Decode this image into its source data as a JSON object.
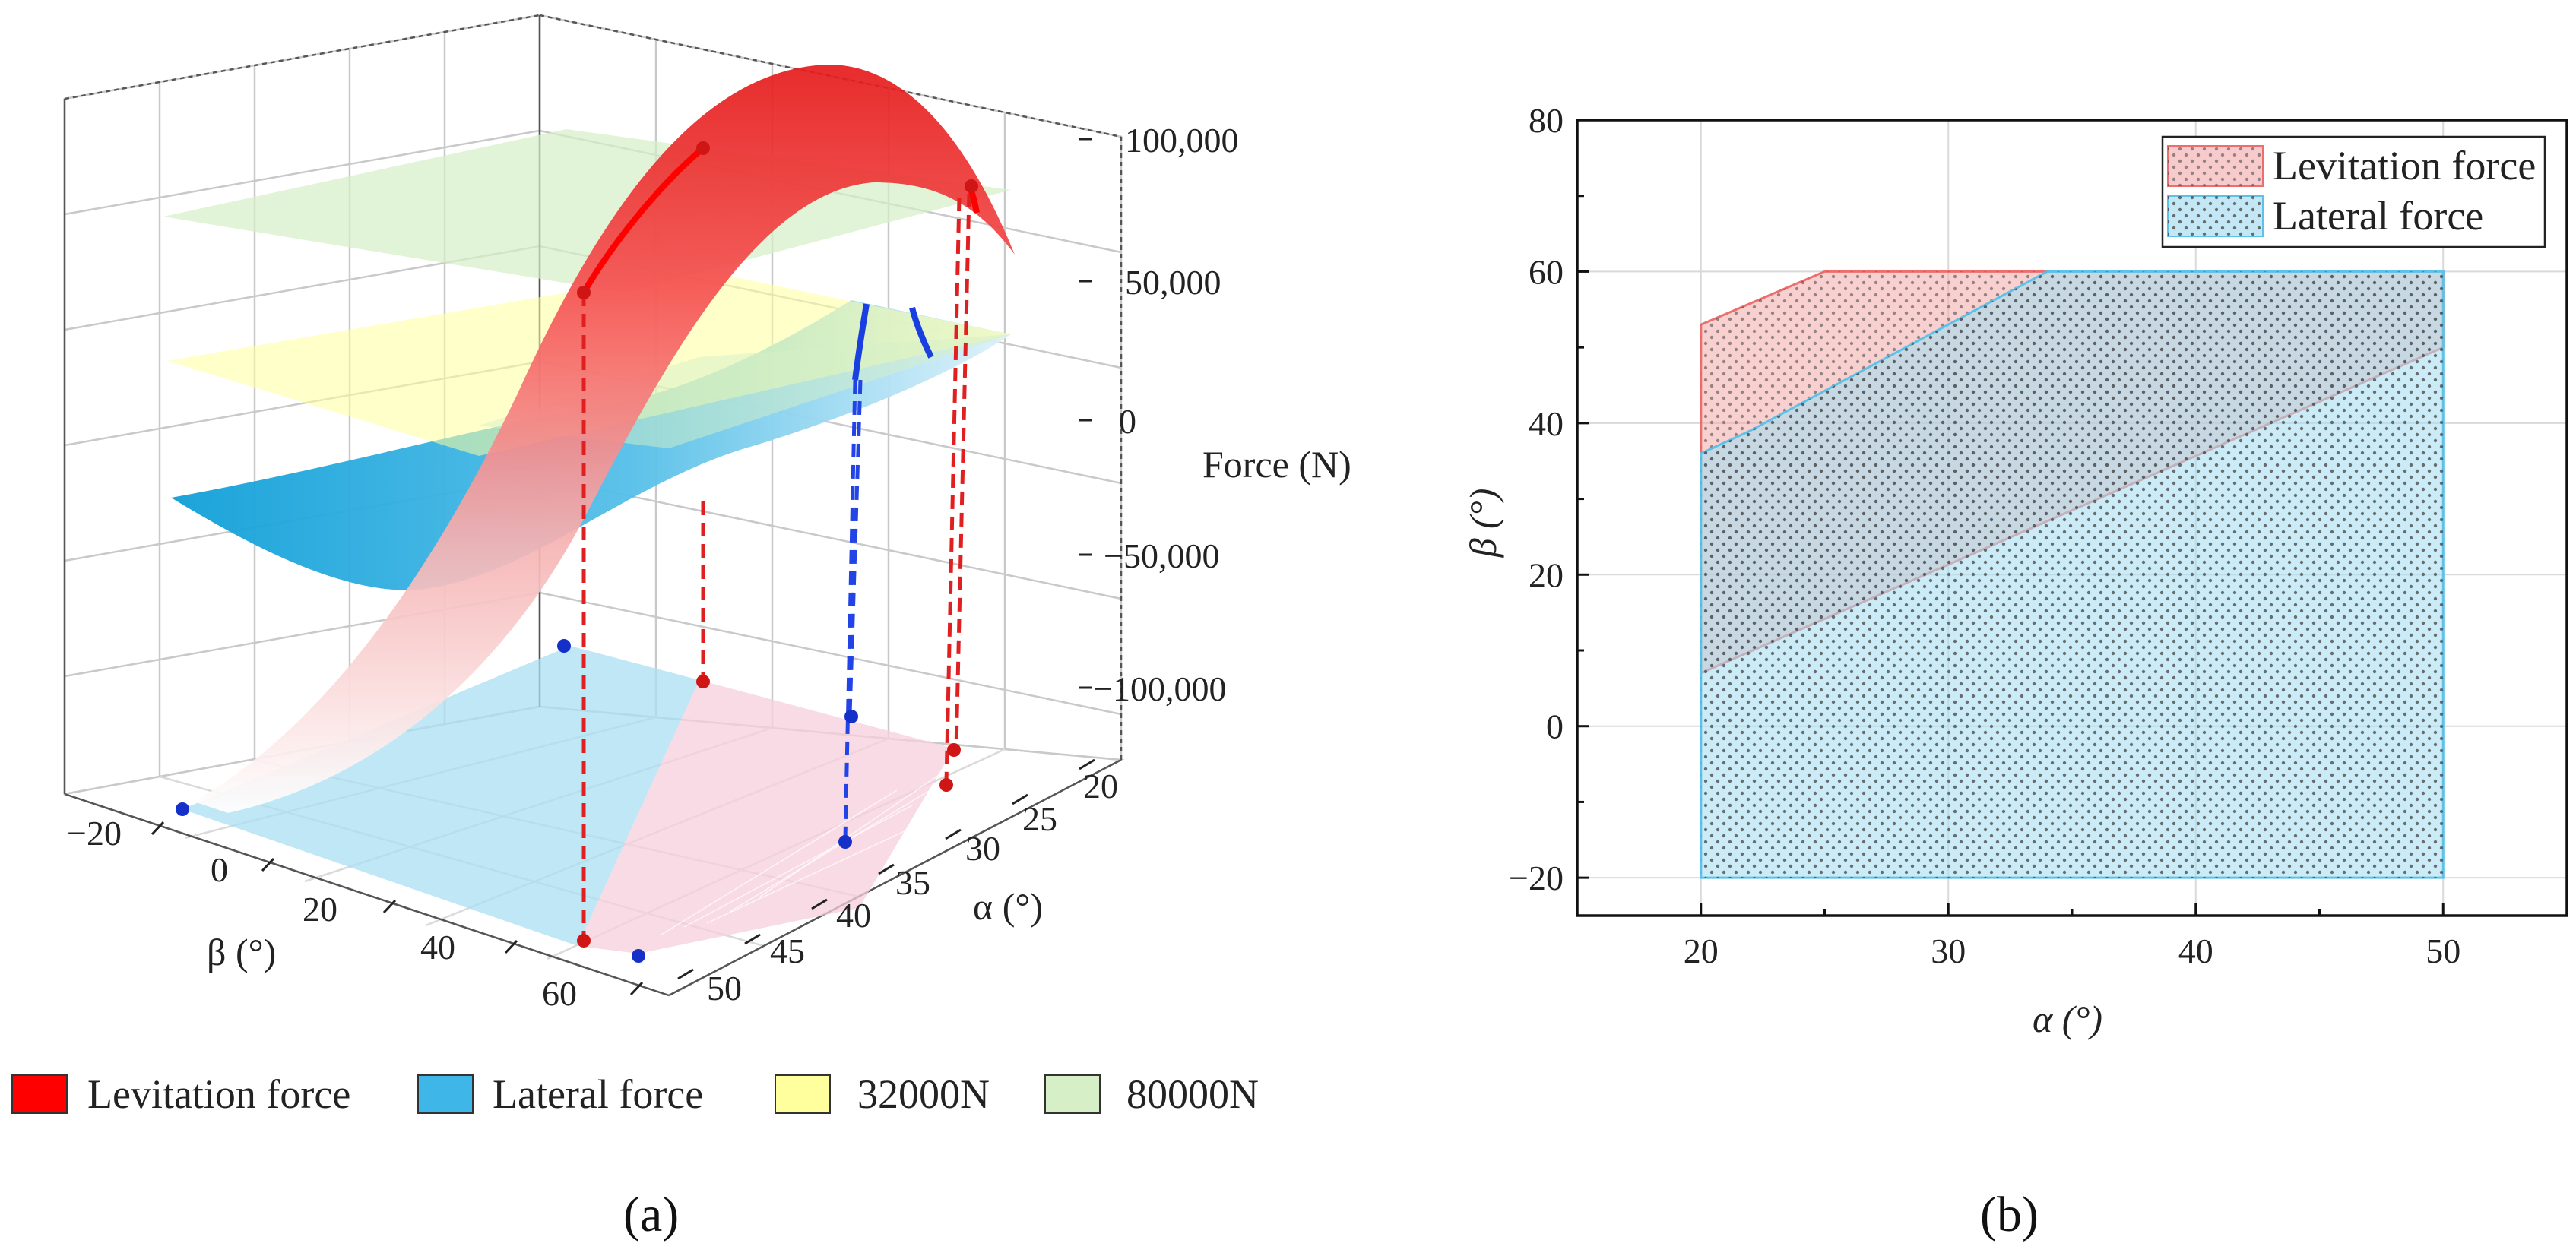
{
  "chart_data": [
    {
      "panel": "(a)",
      "type": "surface3d",
      "axes": {
        "x": {
          "label": "β (°)",
          "ticks": [
            "−20",
            "0",
            "20",
            "40",
            "60"
          ],
          "range": [
            -20,
            60
          ]
        },
        "y": {
          "label": "α (°)",
          "ticks": [
            "20",
            "25",
            "30",
            "35",
            "40",
            "45",
            "50"
          ],
          "range": [
            20,
            50
          ]
        },
        "z": {
          "label": "Force (N)",
          "ticks": [
            "100,000",
            "50,000",
            "0",
            "−50,000",
            "−100,000"
          ],
          "range": [
            -100000,
            100000
          ]
        }
      },
      "series": [
        {
          "name": "Levitation force",
          "color": "#ff0000"
        },
        {
          "name": "Lateral force",
          "color": "#3fb6e8"
        },
        {
          "name": "32000N",
          "color": "#ffff9e",
          "value": 32000
        },
        {
          "name": "80000N",
          "color": "#d6efc6",
          "value": 80000
        }
      ]
    },
    {
      "panel": "(b)",
      "type": "area",
      "xlabel": "α (°)",
      "ylabel": "β (°)",
      "xlim": [
        15,
        55
      ],
      "ylim": [
        -25,
        80
      ],
      "xticks": [
        20,
        30,
        40,
        50
      ],
      "yticks": [
        -20,
        0,
        20,
        40,
        60,
        80
      ],
      "legend": "top-right",
      "series": [
        {
          "name": "Levitation force",
          "color": "#f2a9a9",
          "polygon": [
            [
              20,
              7
            ],
            [
              20,
              53
            ],
            [
              25,
              60
            ],
            [
              33.5,
              60
            ],
            [
              50,
              60
            ],
            [
              50,
              50
            ]
          ]
        },
        {
          "name": "Lateral force",
          "color": "#a9ddf0",
          "polygon": [
            [
              20,
              -20
            ],
            [
              20,
              36
            ],
            [
              22,
              39
            ],
            [
              34,
              60
            ],
            [
              50,
              60
            ],
            [
              50,
              -20
            ]
          ]
        }
      ]
    }
  ]
}
